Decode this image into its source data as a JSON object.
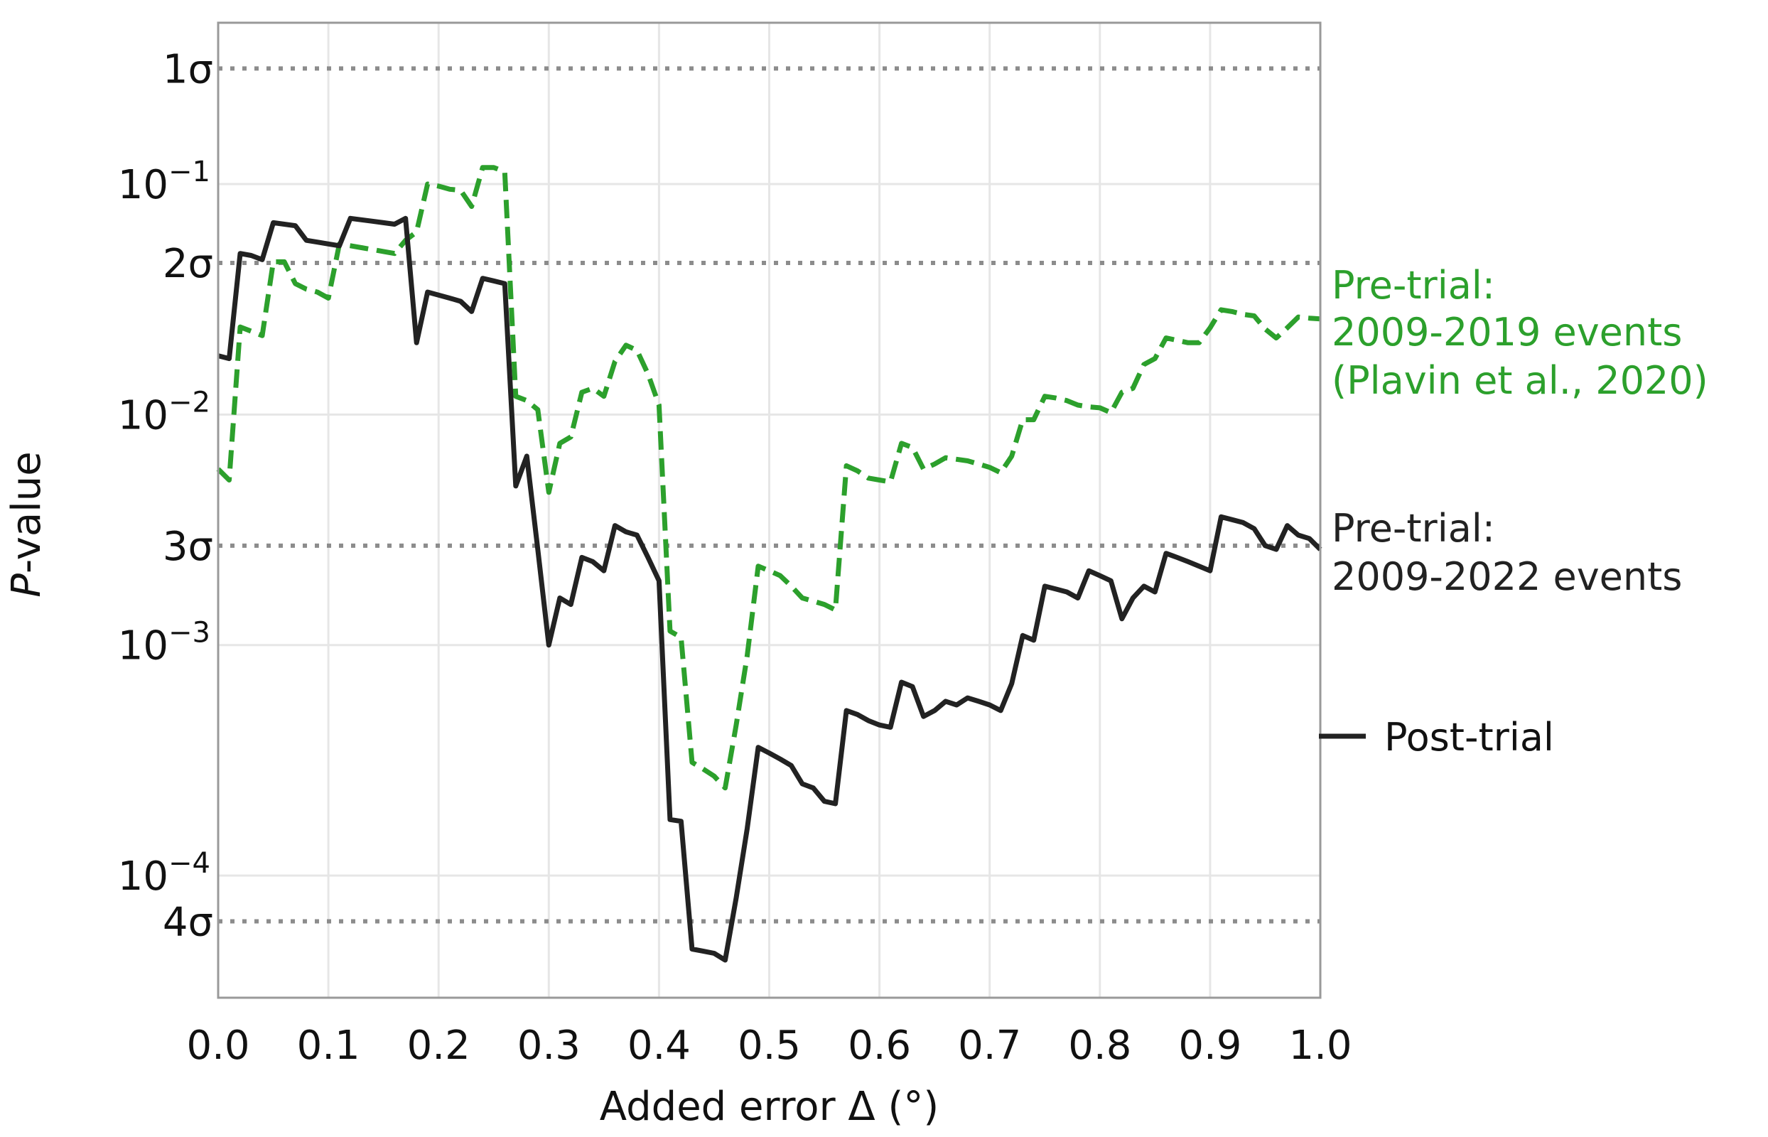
{
  "chart_data": {
    "type": "line",
    "xlabel": "Added error Δ (°)",
    "ylabel": "P-value",
    "xlim": [
      0.0,
      1.0
    ],
    "ylim_log10": [
      -4.53,
      -0.3
    ],
    "y_scale": "log",
    "grid": true,
    "x_ticks": [
      {
        "value": 0.0,
        "label": "0.0"
      },
      {
        "value": 0.1,
        "label": "0.1"
      },
      {
        "value": 0.2,
        "label": "0.2"
      },
      {
        "value": 0.3,
        "label": "0.3"
      },
      {
        "value": 0.4,
        "label": "0.4"
      },
      {
        "value": 0.5,
        "label": "0.5"
      },
      {
        "value": 0.6,
        "label": "0.6"
      },
      {
        "value": 0.7,
        "label": "0.7"
      },
      {
        "value": 0.8,
        "label": "0.8"
      },
      {
        "value": 0.9,
        "label": "0.9"
      },
      {
        "value": 1.0,
        "label": "1.0"
      }
    ],
    "y_ticks": [
      {
        "value": 0.1,
        "base": "10",
        "exp": "−1"
      },
      {
        "value": 0.01,
        "base": "10",
        "exp": "−2"
      },
      {
        "value": 0.001,
        "base": "10",
        "exp": "−3"
      },
      {
        "value": 0.0001,
        "base": "10",
        "exp": "−4"
      }
    ],
    "sigma_lines": [
      {
        "label": "1σ",
        "value": 0.3173
      },
      {
        "label": "2σ",
        "value": 0.0455
      },
      {
        "label": "3σ",
        "value": 0.0027
      },
      {
        "label": "4σ",
        "value": 6.33e-05
      }
    ],
    "series": [
      {
        "name": "Pre-trial: 2009-2019 events (Plavin et al., 2020)",
        "label_lines": [
          "Pre-trial:",
          "2009-2019 events",
          "(Plavin et al., 2020)"
        ],
        "color": "#2ca02c",
        "style": "dashed",
        "x": [
          0.0,
          0.01,
          0.02,
          0.03,
          0.04,
          0.05,
          0.06,
          0.07,
          0.08,
          0.09,
          0.1,
          0.11,
          0.12,
          0.13,
          0.14,
          0.15,
          0.16,
          0.17,
          0.18,
          0.19,
          0.2,
          0.21,
          0.22,
          0.23,
          0.24,
          0.25,
          0.26,
          0.27,
          0.28,
          0.29,
          0.3,
          0.31,
          0.32,
          0.33,
          0.34,
          0.35,
          0.36,
          0.37,
          0.38,
          0.39,
          0.4,
          0.41,
          0.42,
          0.43,
          0.44,
          0.45,
          0.46,
          0.47,
          0.48,
          0.49,
          0.5,
          0.51,
          0.52,
          0.53,
          0.54,
          0.55,
          0.56,
          0.57,
          0.58,
          0.59,
          0.6,
          0.61,
          0.62,
          0.63,
          0.64,
          0.65,
          0.66,
          0.67,
          0.68,
          0.69,
          0.7,
          0.71,
          0.72,
          0.73,
          0.74,
          0.75,
          0.76,
          0.77,
          0.78,
          0.79,
          0.8,
          0.81,
          0.82,
          0.83,
          0.84,
          0.85,
          0.86,
          0.87,
          0.88,
          0.89,
          0.9,
          0.91,
          0.92,
          0.93,
          0.94,
          0.95,
          0.96,
          0.97,
          0.98,
          0.99,
          1.0
        ],
        "y": [
          0.0058,
          0.0052,
          0.024,
          0.023,
          0.022,
          0.046,
          0.046,
          0.037,
          0.035,
          0.034,
          0.032,
          0.055,
          0.054,
          0.053,
          0.052,
          0.051,
          0.05,
          0.057,
          0.062,
          0.1,
          0.098,
          0.095,
          0.094,
          0.08,
          0.118,
          0.118,
          0.113,
          0.012,
          0.0115,
          0.0105,
          0.0046,
          0.0075,
          0.008,
          0.0125,
          0.013,
          0.012,
          0.017,
          0.02,
          0.019,
          0.015,
          0.011,
          0.00115,
          0.00108,
          0.00031,
          0.00029,
          0.00027,
          0.00024,
          0.00045,
          0.0009,
          0.0022,
          0.0021,
          0.002,
          0.0018,
          0.0016,
          0.00155,
          0.0015,
          0.00142,
          0.006,
          0.0057,
          0.0053,
          0.0052,
          0.0051,
          0.0075,
          0.0072,
          0.0058,
          0.0061,
          0.0065,
          0.0064,
          0.0063,
          0.0061,
          0.0059,
          0.0056,
          0.0066,
          0.0095,
          0.0095,
          0.012,
          0.0118,
          0.0115,
          0.011,
          0.0108,
          0.0107,
          0.0102,
          0.0125,
          0.013,
          0.0165,
          0.0175,
          0.0215,
          0.021,
          0.0205,
          0.0205,
          0.0238,
          0.0285,
          0.028,
          0.0272,
          0.0268,
          0.0235,
          0.0215,
          0.0238,
          0.0265,
          0.0262,
          0.026
        ]
      },
      {
        "name": "Pre-trial: 2009-2022 events",
        "label_lines": [
          "Pre-trial:",
          "2009-2022 events"
        ],
        "color": "#222222",
        "style": "solid",
        "x": [
          0.0,
          0.01,
          0.02,
          0.03,
          0.04,
          0.05,
          0.06,
          0.07,
          0.08,
          0.09,
          0.1,
          0.11,
          0.12,
          0.13,
          0.14,
          0.15,
          0.16,
          0.17,
          0.18,
          0.19,
          0.2,
          0.21,
          0.22,
          0.23,
          0.24,
          0.25,
          0.26,
          0.27,
          0.28,
          0.29,
          0.3,
          0.31,
          0.32,
          0.33,
          0.34,
          0.35,
          0.36,
          0.37,
          0.38,
          0.39,
          0.4,
          0.41,
          0.42,
          0.43,
          0.44,
          0.45,
          0.46,
          0.47,
          0.48,
          0.49,
          0.5,
          0.51,
          0.52,
          0.53,
          0.54,
          0.55,
          0.56,
          0.57,
          0.58,
          0.59,
          0.6,
          0.61,
          0.62,
          0.63,
          0.64,
          0.65,
          0.66,
          0.67,
          0.68,
          0.69,
          0.7,
          0.71,
          0.72,
          0.73,
          0.74,
          0.75,
          0.76,
          0.77,
          0.78,
          0.79,
          0.8,
          0.81,
          0.82,
          0.83,
          0.84,
          0.85,
          0.86,
          0.87,
          0.88,
          0.89,
          0.9,
          0.91,
          0.92,
          0.93,
          0.94,
          0.95,
          0.96,
          0.97,
          0.98,
          0.99,
          1.0
        ],
        "y": [
          0.018,
          0.0175,
          0.05,
          0.049,
          0.047,
          0.068,
          0.067,
          0.066,
          0.057,
          0.056,
          0.055,
          0.054,
          0.071,
          0.07,
          0.069,
          0.068,
          0.067,
          0.071,
          0.0205,
          0.034,
          0.033,
          0.032,
          0.031,
          0.028,
          0.039,
          0.038,
          0.037,
          0.0049,
          0.0066,
          0.0026,
          0.001,
          0.0016,
          0.0015,
          0.0024,
          0.0023,
          0.0021,
          0.0033,
          0.0031,
          0.003,
          0.0024,
          0.0019,
          0.000175,
          0.000172,
          4.8e-05,
          4.7e-05,
          4.6e-05,
          4.3e-05,
          8e-05,
          0.00016,
          0.00036,
          0.00034,
          0.00032,
          0.0003,
          0.00025,
          0.00024,
          0.00021,
          0.000205,
          0.00052,
          0.0005,
          0.00047,
          0.00045,
          0.00044,
          0.00069,
          0.00066,
          0.00049,
          0.00052,
          0.00057,
          0.00055,
          0.00059,
          0.00057,
          0.00055,
          0.00052,
          0.00068,
          0.0011,
          0.00105,
          0.0018,
          0.00175,
          0.0017,
          0.0016,
          0.0021,
          0.002,
          0.0019,
          0.0013,
          0.0016,
          0.0018,
          0.0017,
          0.0025,
          0.0024,
          0.0023,
          0.0022,
          0.0021,
          0.0036,
          0.0035,
          0.0034,
          0.0032,
          0.0027,
          0.0026,
          0.0033,
          0.003,
          0.0029,
          0.0026
        ]
      }
    ],
    "legend": {
      "position": "right",
      "entries": [
        {
          "label": "Post-trial",
          "color": "#222222",
          "style": "solid"
        }
      ]
    }
  }
}
